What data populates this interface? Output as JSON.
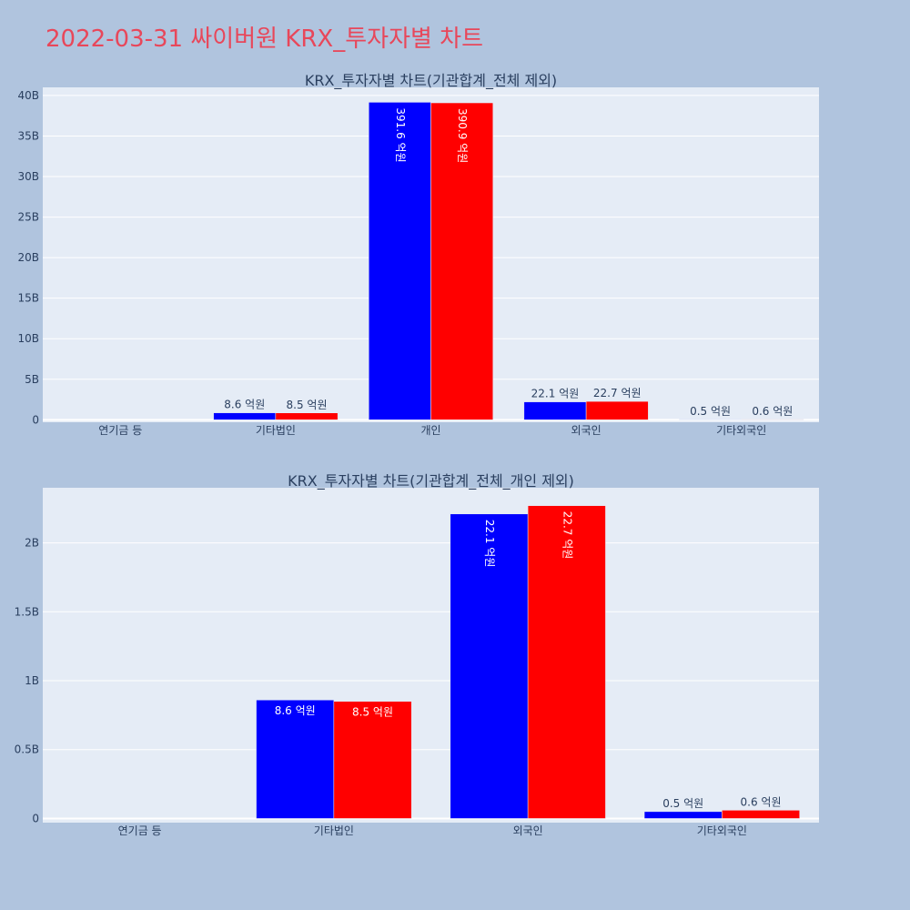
{
  "page_title": "2022-03-31 싸이버원 KRX_투자자별 차트",
  "colors": {
    "background": "#b0c4de",
    "plot_bg": "#e5ecf6",
    "series_a": "#0000ff",
    "series_b": "#ff0000",
    "title": "#e8475a",
    "text": "#2a3f5f"
  },
  "chart_data": [
    {
      "type": "bar",
      "title": "KRX_투자자별 차트(기관합계_전체 제외)",
      "categories": [
        "연기금 등",
        "기타법인",
        "개인",
        "외국인",
        "기타외국인"
      ],
      "series": [
        {
          "color": "#0000ff",
          "values": [
            0,
            0.86,
            39.16,
            2.21,
            0.05
          ],
          "labels": [
            "",
            "8.6 억원",
            "391.6 억원",
            "22.1 억원",
            "0.5 억원"
          ]
        },
        {
          "color": "#ff0000",
          "values": [
            0,
            0.85,
            39.09,
            2.27,
            0.06
          ],
          "labels": [
            "",
            "8.5 억원",
            "390.9 억원",
            "22.7 억원",
            "0.6 억원"
          ]
        }
      ],
      "value_unit": "B",
      "ylim": [
        -0.3,
        41
      ],
      "yticks": [
        0,
        5,
        10,
        15,
        20,
        25,
        30,
        35,
        40
      ],
      "ytick_labels": [
        "0",
        "5B",
        "10B",
        "15B",
        "20B",
        "25B",
        "30B",
        "35B",
        "40B"
      ],
      "grid": true
    },
    {
      "type": "bar",
      "title": "KRX_투자자별 차트(기관합계_전체_개인 제외)",
      "categories": [
        "연기금 등",
        "기타법인",
        "외국인",
        "기타외국인"
      ],
      "series": [
        {
          "color": "#0000ff",
          "values": [
            0,
            0.86,
            2.21,
            0.05
          ],
          "labels": [
            "",
            "8.6 억원",
            "22.1 억원",
            "0.5 억원"
          ]
        },
        {
          "color": "#ff0000",
          "values": [
            0,
            0.85,
            2.27,
            0.06
          ],
          "labels": [
            "",
            "8.5 억원",
            "22.7 억원",
            "0.6 억원"
          ]
        }
      ],
      "value_unit": "B",
      "ylim": [
        -0.03,
        2.4
      ],
      "yticks": [
        0,
        0.5,
        1,
        1.5,
        2
      ],
      "ytick_labels": [
        "0",
        "0.5B",
        "1B",
        "1.5B",
        "2B"
      ],
      "grid": true
    }
  ]
}
